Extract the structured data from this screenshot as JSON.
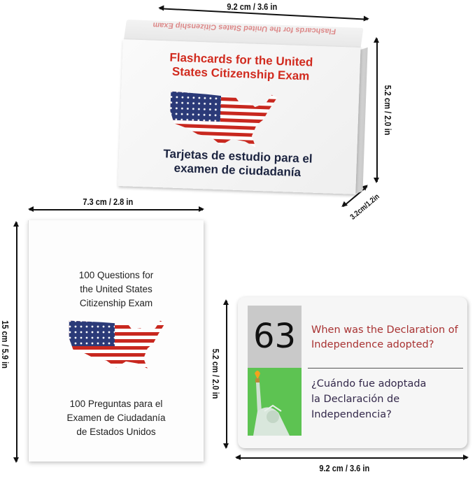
{
  "dimensions": {
    "box_width": "9.2 cm / 3.6 in",
    "box_height": "5.2 cm / 2.0 in",
    "box_depth": "3.2cm/1.2in",
    "booklet_width": "7.3 cm / 2.8 in",
    "booklet_height": "15 cm / 5.9 in",
    "card_height": "5.2 cm / 2.0 in",
    "card_width": "9.2 cm / 3.6 in"
  },
  "box": {
    "top_text": "Flashcards for the United States Citizenship Exam",
    "title_line1": "Flashcards for the United",
    "title_line2": "States Citizenship Exam",
    "subtitle_line1": "Tarjetas de estudio para el",
    "subtitle_line2": "examen de ciudadanía",
    "title_color": "#d12b1f"
  },
  "booklet": {
    "title_line1": "100 Questions for",
    "title_line2": "the United States",
    "title_line3": "Citizenship Exam",
    "subtitle_line1": "100 Preguntas para el",
    "subtitle_line2": "Examen de Ciudadanía",
    "subtitle_line3": "de Estados Unidos"
  },
  "card": {
    "number": "63",
    "question_en_line1": "When was the Declaration of",
    "question_en_line2": "Independence adopted?",
    "question_es_line1": "¿Cuándo fue adoptada",
    "question_es_line2": "la Declaración de",
    "question_es_line3": "Independencia?",
    "image": "statue-of-liberty-icon"
  },
  "flag_colors": {
    "blue": "#2b3a78",
    "red": "#c8281f",
    "white": "#ffffff"
  }
}
